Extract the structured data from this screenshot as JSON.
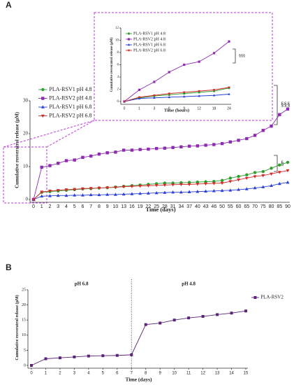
{
  "chart_data": [
    {
      "type": "line",
      "panel": "A",
      "xlabel": "Time (days)",
      "ylabel": "Cumulative resveratrol release (µM)",
      "categories": [
        "0",
        "1",
        "2",
        "3",
        "4",
        "5",
        "6",
        "7",
        "8",
        "9",
        "10",
        "13",
        "16",
        "19",
        "22",
        "25",
        "28",
        "31",
        "34",
        "37",
        "40",
        "43",
        "46",
        "50",
        "55",
        "60",
        "65",
        "70",
        "75",
        "80",
        "85",
        "90"
      ],
      "ylim": [
        0,
        30
      ],
      "yticks": [
        0,
        10,
        20,
        30
      ],
      "annotations": [
        "§§§",
        "§"
      ],
      "series": [
        {
          "name": "PLA-RSV1 pH 4.8",
          "color": "#2e9e2e",
          "marker": "circle",
          "values": [
            0,
            2.2,
            2.4,
            2.6,
            2.8,
            3,
            3.2,
            3.3,
            3.5,
            3.6,
            3.8,
            4,
            4.2,
            4.4,
            4.6,
            4.8,
            5,
            5,
            5.1,
            5.2,
            5.3,
            5.4,
            5.5,
            5.8,
            6.5,
            7,
            7.5,
            8.2,
            8.5,
            9.5,
            10.5,
            11.3
          ]
        },
        {
          "name": "PLA-RSV2 pH 4.8",
          "color": "#8e2bb0",
          "marker": "square",
          "values": [
            0,
            9.8,
            10.3,
            11,
            11.8,
            12,
            12.8,
            13.2,
            13.8,
            14.2,
            14.4,
            15,
            15,
            15.2,
            15.3,
            15.5,
            15.6,
            15.8,
            16,
            16.2,
            16.3,
            16.5,
            16.7,
            17,
            17.5,
            18,
            18.5,
            19.5,
            21,
            22.3,
            25.8,
            27.5
          ]
        },
        {
          "name": "PLA-RSV1 pH 6.8",
          "color": "#2a3fd6",
          "marker": "triangle",
          "values": [
            0,
            1,
            1.1,
            1.2,
            1.2,
            1.3,
            1.3,
            1.4,
            1.4,
            1.5,
            1.5,
            1.6,
            1.7,
            1.8,
            1.9,
            2,
            2.1,
            2.2,
            2.2,
            2.3,
            2.4,
            2.5,
            2.6,
            2.7,
            2.8,
            3,
            3.2,
            3.5,
            3.8,
            4.2,
            4.8,
            5.2
          ]
        },
        {
          "name": "PLA-RSV2 pH 6.8",
          "color": "#d42a2a",
          "marker": "triangle-down",
          "values": [
            0,
            2.3,
            2.6,
            2.8,
            3,
            3.1,
            3.3,
            3.4,
            3.5,
            3.6,
            3.7,
            3.9,
            4,
            4.1,
            4.2,
            4.3,
            4.4,
            4.5,
            4.6,
            4.6,
            4.7,
            4.8,
            4.9,
            5,
            5.5,
            6,
            6.5,
            7,
            7.3,
            7.8,
            8.3,
            8.8
          ]
        }
      ]
    },
    {
      "type": "line",
      "xlabel": "Time (hours)",
      "ylabel": "Cumulative resveratrol release (µM)",
      "categories": [
        "0",
        "1",
        "3",
        "6",
        "9",
        "12",
        "18",
        "24"
      ],
      "ylim": [
        0,
        12
      ],
      "yticks": [
        0,
        2,
        4,
        6,
        8,
        10,
        12
      ],
      "annotations": [
        "§§§"
      ],
      "series": [
        {
          "name": "PLA-RSV1 pH 4.8",
          "color": "#2e9e2e",
          "marker": "circle",
          "values": [
            0,
            0.6,
            0.9,
            1.1,
            1.3,
            1.5,
            1.7,
            2.2
          ]
        },
        {
          "name": "PLA-RSV2 pH 4.8",
          "color": "#8e2bb0",
          "marker": "square",
          "values": [
            0,
            1.9,
            3.2,
            4.8,
            6,
            6.5,
            7.9,
            9.8
          ]
        },
        {
          "name": "PLA-RSV1 pH 6.8",
          "color": "#2a3fd6",
          "marker": "triangle",
          "values": [
            0,
            0.5,
            0.6,
            0.7,
            0.8,
            0.9,
            1,
            1.2
          ]
        },
        {
          "name": "PLA-RSV2 pH 6.8",
          "color": "#d42a2a",
          "marker": "triangle-down",
          "values": [
            0,
            0.7,
            1,
            1.3,
            1.5,
            1.7,
            1.9,
            2.3
          ]
        }
      ]
    },
    {
      "type": "line",
      "panel": "B",
      "xlabel": "Time (days)",
      "ylabel": "Cumulative resveratrol release (µM)",
      "x": [
        0,
        1,
        2,
        3,
        4,
        5,
        6,
        7,
        8,
        9,
        10,
        11,
        12,
        13,
        14,
        15
      ],
      "xlim": [
        0,
        15
      ],
      "xticks": [
        0,
        1,
        2,
        3,
        4,
        5,
        6,
        7,
        8,
        9,
        10,
        11,
        12,
        13,
        14,
        15
      ],
      "ylim": [
        0,
        25
      ],
      "yticks": [
        0,
        5,
        10,
        15,
        20,
        25
      ],
      "vline": 7,
      "annotations": [
        "pH 6.8",
        "pH 4.8"
      ],
      "series": [
        {
          "name": "PLA-RSV2",
          "color": "#5a2577",
          "marker": "square",
          "values": [
            0,
            2.2,
            2.5,
            2.8,
            3.1,
            3.2,
            3.3,
            3.5,
            13.5,
            14,
            15,
            15.7,
            16.2,
            16.8,
            17.3,
            18
          ]
        }
      ]
    }
  ]
}
